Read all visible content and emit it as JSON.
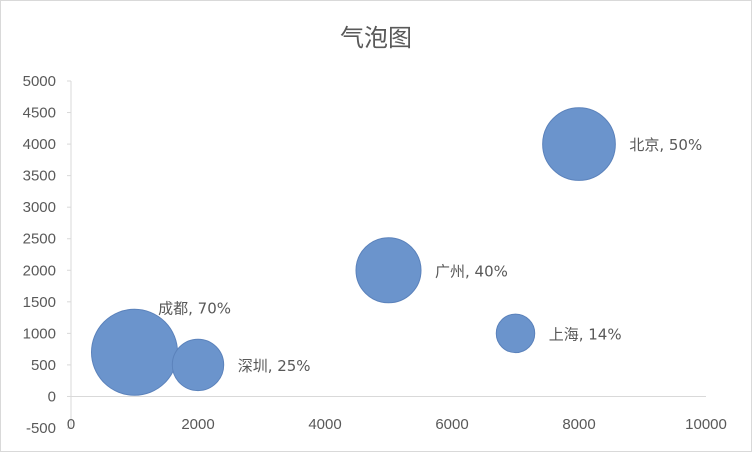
{
  "chart_data": {
    "type": "bubble",
    "title": "气泡图",
    "xlim": [
      0,
      10000
    ],
    "ylim": [
      -500,
      5000
    ],
    "x_ticks": [
      0,
      2000,
      4000,
      6000,
      8000,
      10000
    ],
    "y_ticks": [
      -500,
      0,
      500,
      1000,
      1500,
      2000,
      2500,
      3000,
      3500,
      4000,
      4500,
      5000
    ],
    "grid": false,
    "legend": "none",
    "bubble_color": "#6b94cc",
    "bubble_edge_color": "#5b82bb",
    "points": [
      {
        "label": "北京, 50%",
        "x": 8000,
        "y": 4000,
        "size": 50
      },
      {
        "label": "广州, 40%",
        "x": 5000,
        "y": 2000,
        "size": 40
      },
      {
        "label": "上海, 14%",
        "x": 7000,
        "y": 1000,
        "size": 14
      },
      {
        "label": "成都, 70%",
        "x": 1000,
        "y": 700,
        "size": 70
      },
      {
        "label": "深圳, 25%",
        "x": 2000,
        "y": 500,
        "size": 25
      }
    ]
  }
}
